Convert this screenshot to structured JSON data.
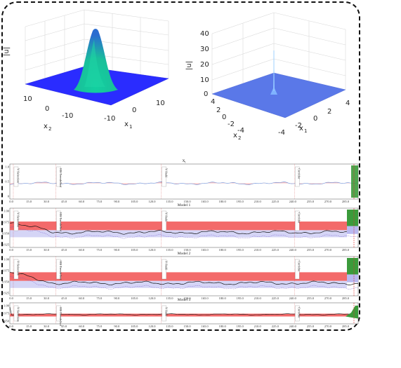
{
  "surface_left": {
    "z_label": "|u|",
    "x1_label": "x",
    "x1_sub": "1",
    "x2_label": "x",
    "x2_sub": "2",
    "x1_ticks": [
      "10",
      "0",
      "-10"
    ],
    "x2_ticks": [
      "10",
      "0",
      "-10"
    ]
  },
  "surface_right": {
    "z_label": "|u|",
    "z_ticks": [
      "40",
      "30",
      "20",
      "10",
      "0"
    ],
    "x1_label": "x",
    "x1_sub": "1",
    "x2_label": "x",
    "x2_sub": "2",
    "x1_ticks": [
      "4",
      "2",
      "0",
      "-2",
      "-4"
    ],
    "x2_ticks": [
      "4",
      "2",
      "0",
      "-2",
      "-4"
    ]
  },
  "strips": [
    {
      "title": "X",
      "title_sub": "t",
      "y_ticks": [
        "1.0",
        "0.5",
        "0"
      ],
      "events": [
        "V Selection",
        "HB Trendelhof",
        "V Stahl",
        "Corridor"
      ]
    },
    {
      "title": "Model 1",
      "y_ticks": [
        "1.00",
        "0.975",
        "0.950",
        "0.925"
      ],
      "events": [
        "V Selection",
        "HB Trendelhof",
        "V Stahl",
        "Corridor"
      ]
    },
    {
      "title": "Model 2",
      "y_ticks": [
        "1.00",
        "0.975",
        "0.950",
        "0.925"
      ],
      "events": [
        "V Selection",
        "HB Trendelhof",
        "V Stahl",
        "Corridor"
      ]
    },
    {
      "title": "Model 3",
      "y_ticks": [
        "1.00",
        "0.975",
        "0.950"
      ],
      "events": [
        "V Selection",
        "HB Trendelhof",
        "V Stahl",
        "Corridor"
      ]
    }
  ],
  "x_ticks": [
    "0.0",
    "15.0",
    "30.0",
    "45.0",
    "60.0",
    "75.0",
    "90.0",
    "105.0",
    "120.0",
    "135.0",
    "150.0",
    "165.0",
    "180.0",
    "195.0",
    "210.0",
    "225.0",
    "240.0",
    "255.0",
    "270.0",
    "285.0"
  ],
  "colors": {
    "band_red": "#f36a6a",
    "band_green": "#3b9b3b",
    "band_purple": "#b9b9f0",
    "surface_blue": "#2b2bff",
    "surface_light": "#5a7be6",
    "event_line": "#d24c4c"
  }
}
